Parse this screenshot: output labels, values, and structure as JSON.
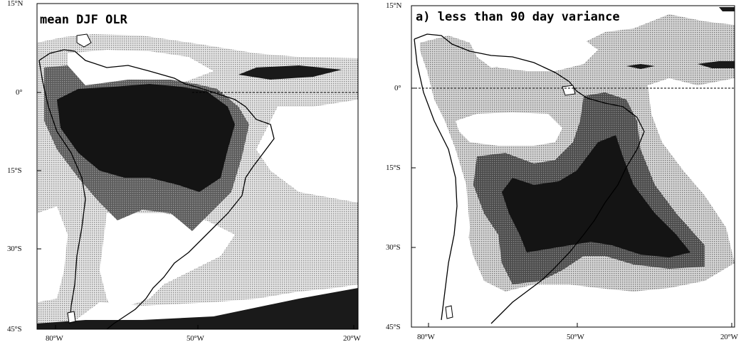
{
  "figure": {
    "panels": [
      {
        "id": "left",
        "title": "mean DJF OLR",
        "lat_ticks": [
          "15°N",
          "0°",
          "15°S",
          "30°S",
          "45°S"
        ],
        "lon_ticks": [
          "80°W",
          "50°W",
          "20°W"
        ],
        "extent": {
          "lon": [
            -80,
            -20
          ],
          "lat": [
            -45,
            15
          ]
        }
      },
      {
        "id": "right",
        "title": "a) less than 90 day variance",
        "lat_ticks": [
          "15°N",
          "0°",
          "15°S",
          "30°S",
          "45°S"
        ],
        "lon_ticks": [
          "80°W",
          "50°W",
          "20°W"
        ],
        "extent": {
          "lon": [
            -80,
            -20
          ],
          "lat": [
            -45,
            15
          ]
        }
      }
    ],
    "colors": {
      "light_shade": "#cfcfcf",
      "medium_shade": "#6e6e6e",
      "dark_shade": "#141414",
      "coast": "#000000"
    }
  }
}
